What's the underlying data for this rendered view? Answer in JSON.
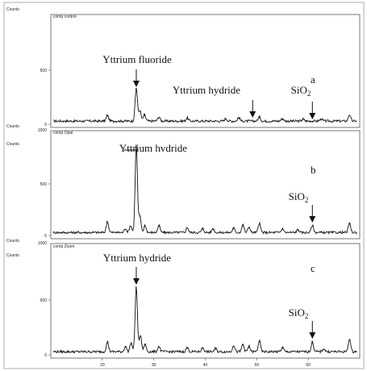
{
  "chart_data": [
    {
      "type": "line",
      "panel_tag": "comp control",
      "panel_letter": "a",
      "ylabel": "Counts",
      "ylim": [
        0,
        1000
      ],
      "yticks": [
        "0",
        "500"
      ],
      "xlim": [
        10,
        70
      ],
      "peaks": [
        {
          "x": 21,
          "y": 75
        },
        {
          "x": 26.6,
          "y": 330
        },
        {
          "x": 27.3,
          "y": 120
        },
        {
          "x": 28.2,
          "y": 80
        },
        {
          "x": 31,
          "y": 60
        },
        {
          "x": 36.5,
          "y": 50
        },
        {
          "x": 44,
          "y": 45
        },
        {
          "x": 46.5,
          "y": 55
        },
        {
          "x": 50.5,
          "y": 60
        },
        {
          "x": 55,
          "y": 45
        },
        {
          "x": 59,
          "y": 40
        },
        {
          "x": 62.5,
          "y": 40
        },
        {
          "x": 68,
          "y": 80
        }
      ],
      "annotations": [
        {
          "text": "Yttrium fluoride",
          "x": 26.6
        },
        {
          "text": "Yttrium hydride",
          "x": 49.2
        },
        {
          "text": "SiO",
          "sub": "2",
          "x": 60.8
        }
      ]
    },
    {
      "type": "line",
      "panel_tag": "comp Opal",
      "panel_letter": "b",
      "ylabel": "Counts",
      "ylim": [
        0,
        1000
      ],
      "yticks": [
        "0",
        "500"
      ],
      "top_label": "1000",
      "xlim": [
        10,
        70
      ],
      "peaks": [
        {
          "x": 21,
          "y": 130
        },
        {
          "x": 24.5,
          "y": 60
        },
        {
          "x": 25.5,
          "y": 90
        },
        {
          "x": 26.6,
          "y": 870
        },
        {
          "x": 27.3,
          "y": 180
        },
        {
          "x": 28.3,
          "y": 90
        },
        {
          "x": 31,
          "y": 90
        },
        {
          "x": 36.5,
          "y": 70
        },
        {
          "x": 39.5,
          "y": 60
        },
        {
          "x": 41.5,
          "y": 60
        },
        {
          "x": 45.5,
          "y": 65
        },
        {
          "x": 47.3,
          "y": 95
        },
        {
          "x": 48.5,
          "y": 75
        },
        {
          "x": 50.5,
          "y": 110
        },
        {
          "x": 55,
          "y": 60
        },
        {
          "x": 58,
          "y": 50
        },
        {
          "x": 60.8,
          "y": 90
        },
        {
          "x": 68,
          "y": 110
        }
      ],
      "annotations": [
        {
          "text": "Yttrium hvdride",
          "x": 26.6
        },
        {
          "text": "SiO",
          "sub": "2",
          "x": 60.8
        }
      ]
    },
    {
      "type": "line",
      "panel_tag": "comp Zoom",
      "panel_letter": "c",
      "ylabel": "Counts",
      "ylim": [
        0,
        1000
      ],
      "yticks": [
        "0",
        "500"
      ],
      "top_label": "1000",
      "xlim": [
        10,
        70
      ],
      "xticks": [
        "20",
        "30",
        "40",
        "50",
        "60"
      ],
      "peaks": [
        {
          "x": 21,
          "y": 110
        },
        {
          "x": 24.5,
          "y": 70
        },
        {
          "x": 25.6,
          "y": 100
        },
        {
          "x": 26.6,
          "y": 610
        },
        {
          "x": 27.4,
          "y": 170
        },
        {
          "x": 28.3,
          "y": 90
        },
        {
          "x": 31,
          "y": 70
        },
        {
          "x": 36.5,
          "y": 60
        },
        {
          "x": 39.5,
          "y": 60
        },
        {
          "x": 42,
          "y": 50
        },
        {
          "x": 45.5,
          "y": 80
        },
        {
          "x": 47.3,
          "y": 90
        },
        {
          "x": 48.5,
          "y": 70
        },
        {
          "x": 50.5,
          "y": 120
        },
        {
          "x": 55,
          "y": 60
        },
        {
          "x": 60.8,
          "y": 110
        },
        {
          "x": 63,
          "y": 50
        },
        {
          "x": 68,
          "y": 140
        }
      ],
      "annotations": [
        {
          "text": "Yttrium hydride",
          "x": 26.6
        },
        {
          "text": "SiO",
          "sub": "2",
          "x": 60.8
        }
      ]
    }
  ]
}
